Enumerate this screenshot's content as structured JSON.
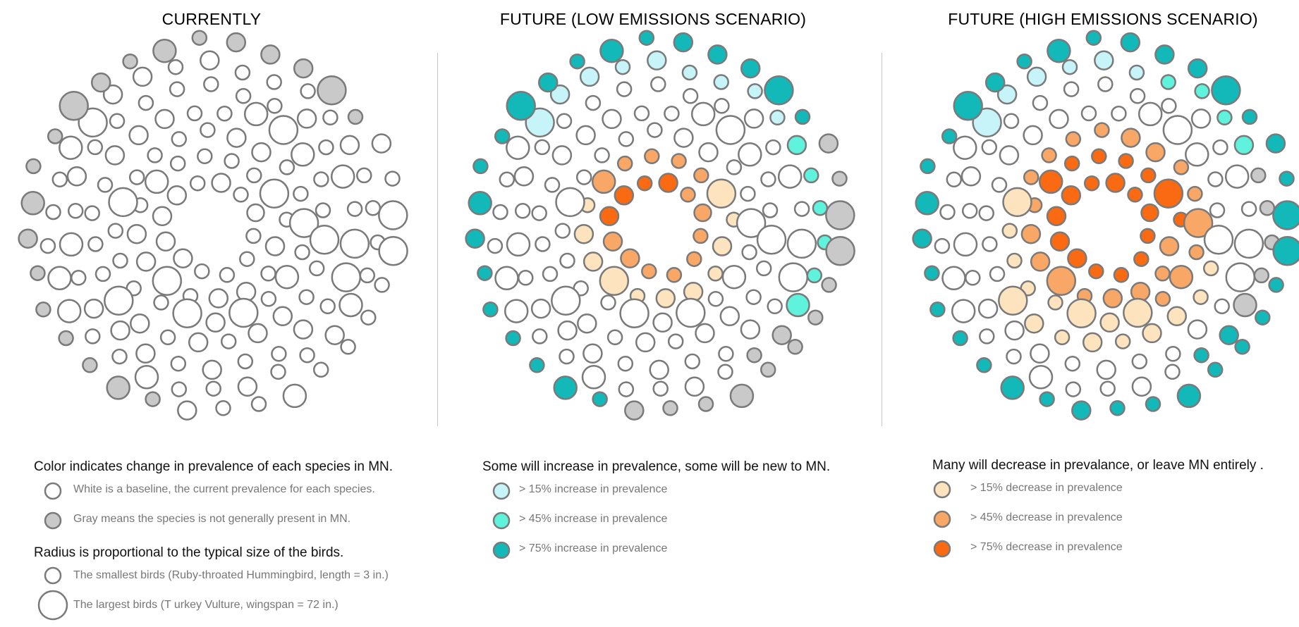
{
  "colors": {
    "stroke": "#7a7a7a",
    "baseline": "#ffffff",
    "absent": "#c9c9c9",
    "inc15": "#c6f4f8",
    "inc45": "#5ff2dc",
    "inc75": "#13b8b8",
    "dec15": "#fde4bf",
    "dec45": "#f9a766",
    "dec75": "#fa6a12"
  },
  "chart_data": {
    "type": "radial-bubble",
    "panels": [
      {
        "title": "CURRENTLY"
      },
      {
        "title": "FUTURE (LOW EMISSIONS SCENARIO)"
      },
      {
        "title": "FUTURE (HIGH EMISSIONS SCENARIO)"
      }
    ],
    "size_encoding": {
      "measure": "typical bird size",
      "min": "Ruby-throated Hummingbird, length = 3 in.",
      "max": "Turkey Vulture, wingspan = 72 in."
    },
    "category_counts": {
      "CURRENTLY": {
        "baseline": 140,
        "absent": 20
      },
      "FUTURE (LOW EMISSIONS SCENARIO)": {
        "baseline": 85,
        "absent": 14,
        "inc15": 9,
        "inc45": 6,
        "inc75": 20,
        "dec15": 11,
        "dec45": 13,
        "dec75": 4
      },
      "FUTURE (HIGH EMISSIONS SCENARIO)": {
        "baseline": 60,
        "absent": 5,
        "inc15": 6,
        "inc45": 4,
        "inc75": 34,
        "dec15": 17,
        "dec45": 21,
        "dec75": 19
      }
    }
  },
  "legends": {
    "current": {
      "heading1": "Color indicates change in prevalence of each species in MN.",
      "white": "White is a baseline, the current prevalence for each species.",
      "gray": "Gray means the species is not generally present in MN.",
      "heading2": "Radius is proportional to the typical size of the birds.",
      "smallest": "The smallest birds (Ruby-throated Hummingbird, length = 3 in.)",
      "largest": "The largest birds (T urkey Vulture, wingspan = 72 in.)"
    },
    "increase": {
      "heading": "Some will increase in prevalence, some will be new to MN.",
      "i15": "> 15% increase in prevalence",
      "i45": "> 45% increase in prevalence",
      "i75": "> 75% increase in prevalence"
    },
    "decrease": {
      "heading": "Many will decrease in prevalance, or leave MN entirely .",
      "d15": "> 15% decrease in prevalence",
      "d45": "> 45% decrease in prevalence",
      "d75": "> 75% decrease in prevalence"
    }
  }
}
